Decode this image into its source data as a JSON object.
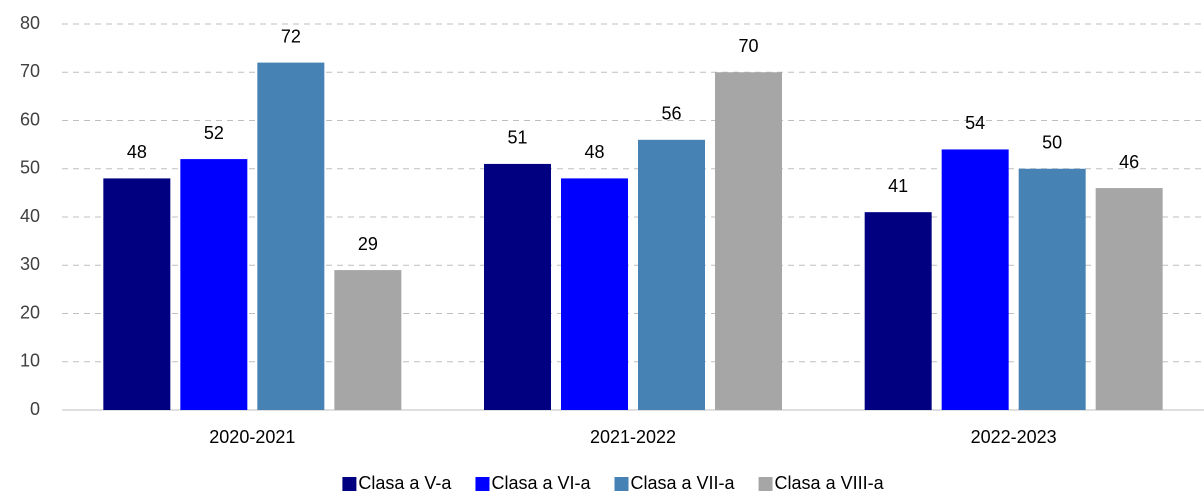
{
  "chart_data": {
    "type": "bar",
    "categories": [
      "2020-2021",
      "2021-2022",
      "2022-2023"
    ],
    "series": [
      {
        "name": "Clasa a V-a",
        "color": "#000080",
        "values": [
          48,
          51,
          41
        ]
      },
      {
        "name": "Clasa a VI-a",
        "color": "#0000ff",
        "values": [
          52,
          48,
          54
        ]
      },
      {
        "name": "Clasa a VII-a",
        "color": "#4682b4",
        "values": [
          72,
          56,
          50
        ]
      },
      {
        "name": "Clasa a VIII-a",
        "color": "#a6a6a6",
        "values": [
          29,
          70,
          46
        ]
      }
    ],
    "ylim": [
      0,
      80
    ],
    "yticks": [
      0,
      10,
      20,
      30,
      40,
      50,
      60,
      70,
      80
    ],
    "grid": true,
    "legend": "bottom"
  }
}
